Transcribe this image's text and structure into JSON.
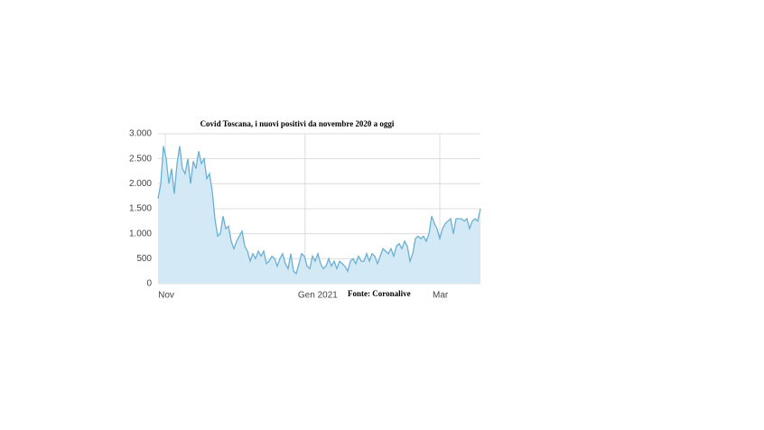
{
  "chart_data": {
    "type": "area",
    "title": "Covid Toscana, i nuovi positivi da novembre 2020 a oggi",
    "annotation": "Fonte: Coronalive",
    "color": "#6ab0d4",
    "fill": "#d3eaf6",
    "grid": true,
    "x": [
      0,
      1,
      2,
      3,
      4,
      5,
      6,
      7,
      8,
      9,
      10,
      11,
      12,
      13,
      14,
      15,
      16,
      17,
      18,
      19,
      20,
      21,
      22,
      23,
      24,
      25,
      26,
      27,
      28,
      29,
      30,
      31,
      32,
      33,
      34,
      35,
      36,
      37,
      38,
      39,
      40,
      41,
      42,
      43,
      44,
      45,
      46,
      47,
      48,
      49,
      50,
      51,
      52,
      53,
      54,
      55,
      56,
      57,
      58,
      59,
      60,
      61,
      62,
      63,
      64,
      65,
      66,
      67,
      68,
      69,
      70,
      71,
      72,
      73,
      74,
      75,
      76,
      77,
      78,
      79,
      80,
      81,
      82,
      83,
      84,
      85,
      86,
      87,
      88,
      89,
      90,
      91,
      92,
      93,
      94,
      95,
      96,
      97,
      98,
      99,
      100,
      101,
      102,
      103,
      104,
      105,
      106,
      107,
      108,
      109,
      110,
      111,
      112,
      113,
      114,
      115,
      116,
      117,
      118,
      119
    ],
    "values": [
      1700,
      2000,
      2750,
      2500,
      2000,
      2300,
      1800,
      2400,
      2750,
      2300,
      2200,
      2500,
      2000,
      2450,
      2300,
      2650,
      2400,
      2500,
      2100,
      2200,
      1850,
      1300,
      950,
      1000,
      1350,
      1100,
      1150,
      850,
      700,
      850,
      950,
      1050,
      750,
      650,
      450,
      600,
      500,
      650,
      550,
      650,
      400,
      450,
      550,
      500,
      350,
      500,
      600,
      400,
      300,
      600,
      250,
      200,
      400,
      600,
      550,
      350,
      300,
      550,
      450,
      600,
      400,
      300,
      350,
      500,
      350,
      450,
      300,
      450,
      400,
      350,
      250,
      450,
      500,
      400,
      550,
      450,
      450,
      600,
      450,
      600,
      550,
      400,
      550,
      700,
      650,
      600,
      700,
      550,
      750,
      800,
      700,
      850,
      750,
      450,
      600,
      900,
      950,
      900,
      950,
      850,
      1000,
      1350,
      1200,
      1100,
      900,
      1100,
      1200,
      1250,
      1300,
      1000,
      1300,
      1300,
      1300,
      1250,
      1300,
      1100,
      1250,
      1300,
      1250,
      1500
    ],
    "xlim": [
      0,
      119
    ],
    "xticks": [
      {
        "value": 2.7,
        "label": "Nov"
      },
      {
        "value": 54.3,
        "label": "Gen 2021"
      },
      {
        "value": 104,
        "label": "Mar"
      }
    ],
    "ylim": [
      0,
      3000
    ],
    "yticks": [
      0,
      500,
      {
        "value": 1000,
        "label": "1.000"
      },
      {
        "value": 1500,
        "label": "1.500"
      },
      {
        "value": 2000,
        "label": "2.000"
      },
      {
        "value": 2500,
        "label": "2.500"
      },
      {
        "value": 3000,
        "label": "3.000"
      }
    ]
  }
}
